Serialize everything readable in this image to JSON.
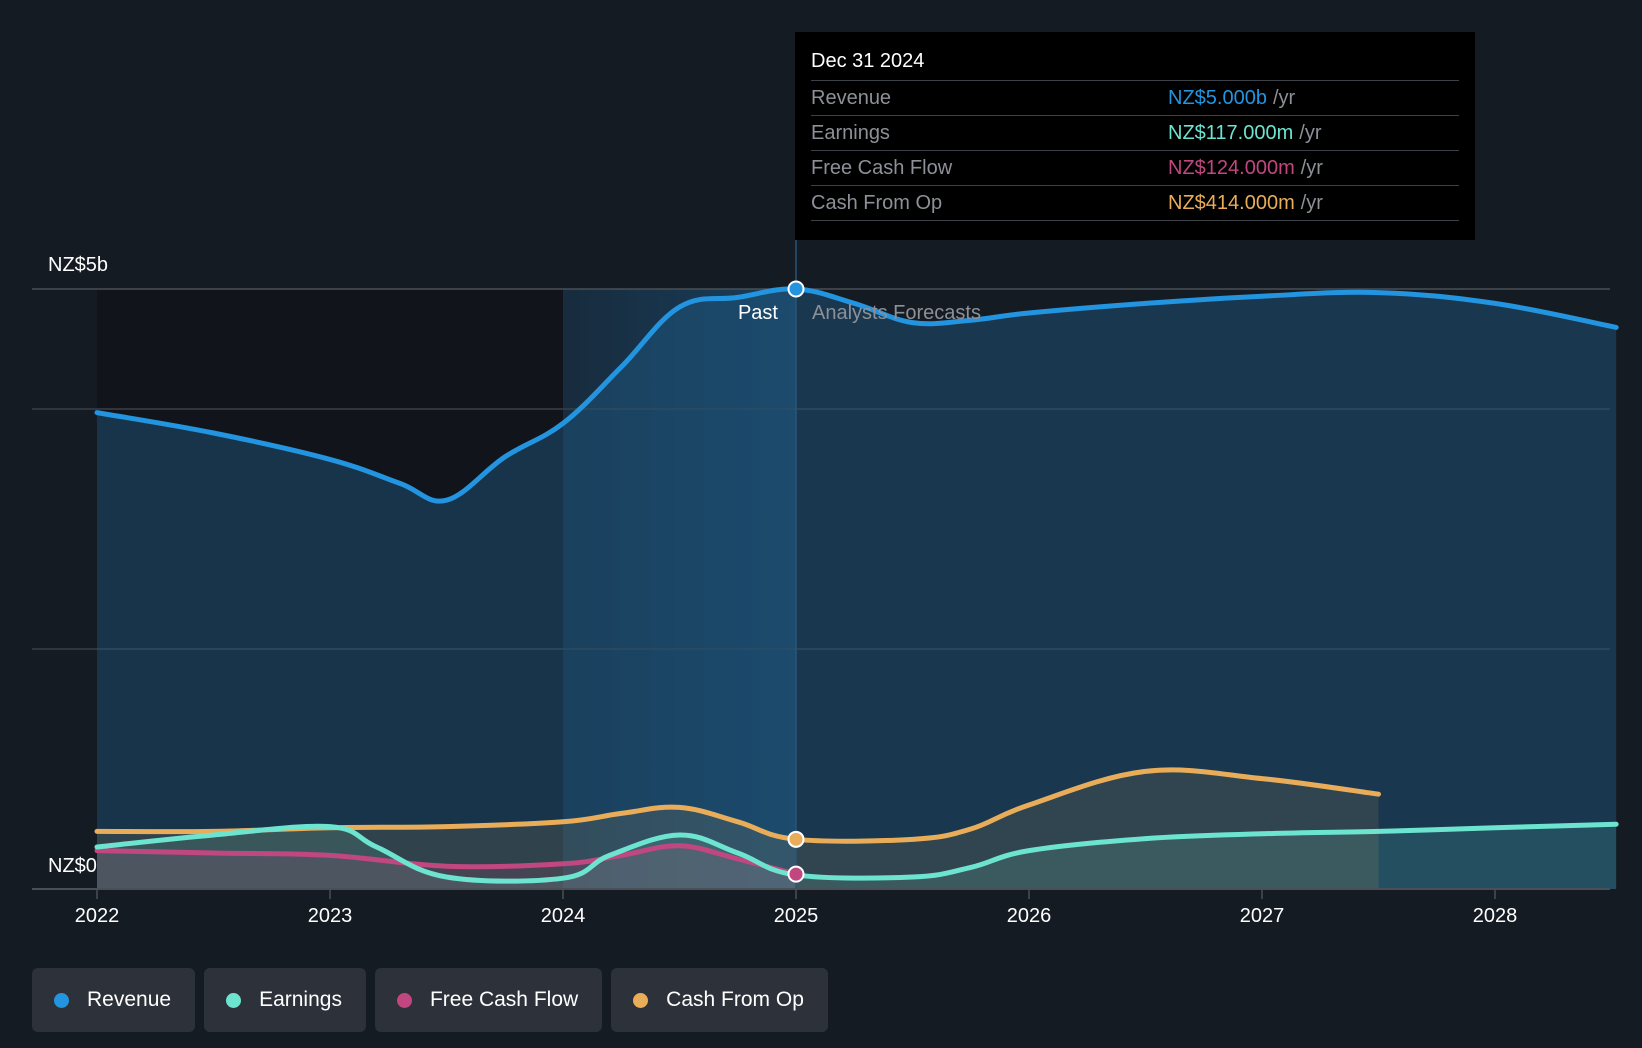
{
  "colors": {
    "background": "#151b23",
    "past_background": "#11151b",
    "revenue": "#2394df",
    "earnings": "#6ce4d0",
    "free_cash_flow": "#c0477f",
    "cash_from_op": "#e9ad5a",
    "grid": "#3a3f47",
    "axis": "#4a4f57"
  },
  "tooltip": {
    "date": "Dec 31 2024",
    "rows": [
      {
        "label": "Revenue",
        "value": "NZ$5.000b",
        "unit": "/yr",
        "color": "#2394df"
      },
      {
        "label": "Earnings",
        "value": "NZ$117.000m",
        "unit": "/yr",
        "color": "#6ce4d0"
      },
      {
        "label": "Free Cash Flow",
        "value": "NZ$124.000m",
        "unit": "/yr",
        "color": "#c0477f"
      },
      {
        "label": "Cash From Op",
        "value": "NZ$414.000m",
        "unit": "/yr",
        "color": "#e9ad5a"
      }
    ]
  },
  "labels": {
    "past": "Past",
    "forecast": "Analysts Forecasts"
  },
  "legend": [
    {
      "label": "Revenue",
      "color": "#2394df"
    },
    {
      "label": "Earnings",
      "color": "#6ce4d0"
    },
    {
      "label": "Free Cash Flow",
      "color": "#c0477f"
    },
    {
      "label": "Cash From Op",
      "color": "#e9ad5a"
    }
  ],
  "chart_data": {
    "type": "area",
    "title": "",
    "xlabel": "",
    "ylabel": "",
    "x_ticks": [
      "2022",
      "2023",
      "2024",
      "2025",
      "2026",
      "2027",
      "2028"
    ],
    "xlim": [
      2022,
      2028.52
    ],
    "ylim": [
      0,
      5
    ],
    "y_tick_labels": [
      {
        "value": 5,
        "label": "NZ$5b"
      },
      {
        "value": 0,
        "label": "NZ$0"
      }
    ],
    "gridlines": [
      5,
      4,
      2,
      0
    ],
    "past_forecast_split": 2025,
    "highlight_start": 2024,
    "units": "NZ$ billions",
    "series": [
      {
        "name": "Revenue",
        "key": "revenue",
        "points": [
          [
            2022,
            3.97
          ],
          [
            2022.5,
            3.8
          ],
          [
            2023,
            3.58
          ],
          [
            2023.3,
            3.38
          ],
          [
            2023.5,
            3.24
          ],
          [
            2023.75,
            3.6
          ],
          [
            2024,
            3.88
          ],
          [
            2024.25,
            4.35
          ],
          [
            2024.5,
            4.85
          ],
          [
            2024.75,
            4.93
          ],
          [
            2025,
            5.0
          ],
          [
            2025.25,
            4.88
          ],
          [
            2025.5,
            4.72
          ],
          [
            2025.75,
            4.74
          ],
          [
            2026,
            4.8
          ],
          [
            2026.5,
            4.88
          ],
          [
            2027,
            4.94
          ],
          [
            2027.5,
            4.97
          ],
          [
            2028,
            4.88
          ],
          [
            2028.52,
            4.68
          ]
        ]
      },
      {
        "name": "Earnings",
        "key": "earnings",
        "points": [
          [
            2022,
            0.35
          ],
          [
            2022.5,
            0.45
          ],
          [
            2023,
            0.52
          ],
          [
            2023.2,
            0.35
          ],
          [
            2023.5,
            0.1
          ],
          [
            2024,
            0.09
          ],
          [
            2024.2,
            0.28
          ],
          [
            2024.5,
            0.45
          ],
          [
            2024.75,
            0.3
          ],
          [
            2025,
            0.117
          ],
          [
            2025.5,
            0.1
          ],
          [
            2025.75,
            0.18
          ],
          [
            2026,
            0.32
          ],
          [
            2026.5,
            0.42
          ],
          [
            2027,
            0.46
          ],
          [
            2027.5,
            0.48
          ],
          [
            2028,
            0.51
          ],
          [
            2028.52,
            0.54
          ]
        ]
      },
      {
        "name": "Free Cash Flow",
        "key": "free_cash_flow",
        "points": [
          [
            2022,
            0.32
          ],
          [
            2022.5,
            0.3
          ],
          [
            2023,
            0.28
          ],
          [
            2023.5,
            0.19
          ],
          [
            2024,
            0.21
          ],
          [
            2024.25,
            0.28
          ],
          [
            2024.5,
            0.36
          ],
          [
            2024.75,
            0.25
          ],
          [
            2025,
            0.124
          ]
        ]
      },
      {
        "name": "Cash From Op",
        "key": "cash_from_op",
        "points": [
          [
            2022,
            0.48
          ],
          [
            2022.5,
            0.48
          ],
          [
            2023,
            0.51
          ],
          [
            2023.5,
            0.52
          ],
          [
            2024,
            0.56
          ],
          [
            2024.25,
            0.63
          ],
          [
            2024.5,
            0.68
          ],
          [
            2024.75,
            0.56
          ],
          [
            2025,
            0.414
          ],
          [
            2025.5,
            0.414
          ],
          [
            2025.75,
            0.5
          ],
          [
            2026,
            0.7
          ],
          [
            2026.5,
            0.98
          ],
          [
            2027,
            0.92
          ],
          [
            2027.5,
            0.79
          ]
        ]
      }
    ]
  }
}
